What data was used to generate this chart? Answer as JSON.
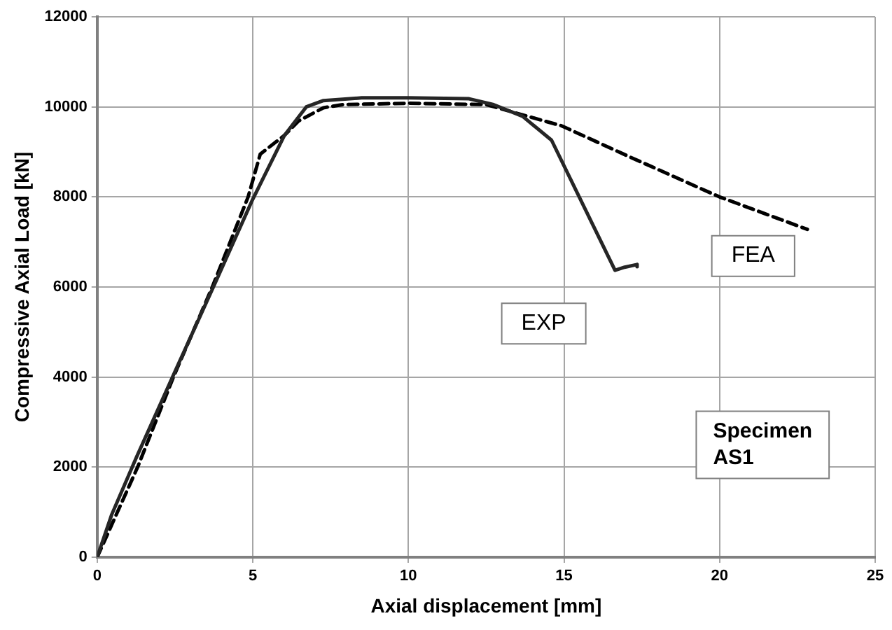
{
  "chart_data": {
    "type": "line",
    "xlabel": "Axial displacement [mm]",
    "ylabel": "Compressive Axial Load [kN]",
    "xlim": [
      0,
      25
    ],
    "xticks": [
      0,
      5,
      10,
      15,
      20,
      25
    ],
    "ylim": [
      0,
      12000
    ],
    "yticks": [
      0,
      2000,
      4000,
      6000,
      8000,
      10000,
      12000
    ],
    "grid": true,
    "legend": false,
    "marker": "none",
    "series": [
      {
        "name": "EXP",
        "color": "#262626",
        "line_style": "solid",
        "x": [
          0,
          0.47,
          1.25,
          2.42,
          3.8,
          5.0,
          6.02,
          6.72,
          7.27,
          8.5,
          10,
          11.95,
          12.74,
          13.67,
          14.6,
          16.64,
          16.95,
          17.35,
          17.35
        ],
        "values": [
          0,
          950,
          2200,
          4000,
          6100,
          7950,
          9370,
          10000,
          10140,
          10200,
          10200,
          10180,
          10050,
          9790,
          9260,
          6370,
          6440,
          6500,
          6450
        ]
      },
      {
        "name": "FEA",
        "color": "#000000",
        "line_style": "dashed",
        "x": [
          0,
          1.3,
          2.45,
          3.7,
          4.85,
          5.24,
          6.02,
          6.48,
          7.27,
          7.89,
          10,
          12.5,
          14.92,
          17.11,
          20.0,
          22.82
        ],
        "values": [
          0,
          2000,
          4000,
          6000,
          8000,
          8950,
          9370,
          9690,
          9980,
          10050,
          10080,
          10050,
          9580,
          8890,
          8000,
          7280
        ]
      }
    ],
    "annotations": [
      "Specimen AS1"
    ]
  }
}
